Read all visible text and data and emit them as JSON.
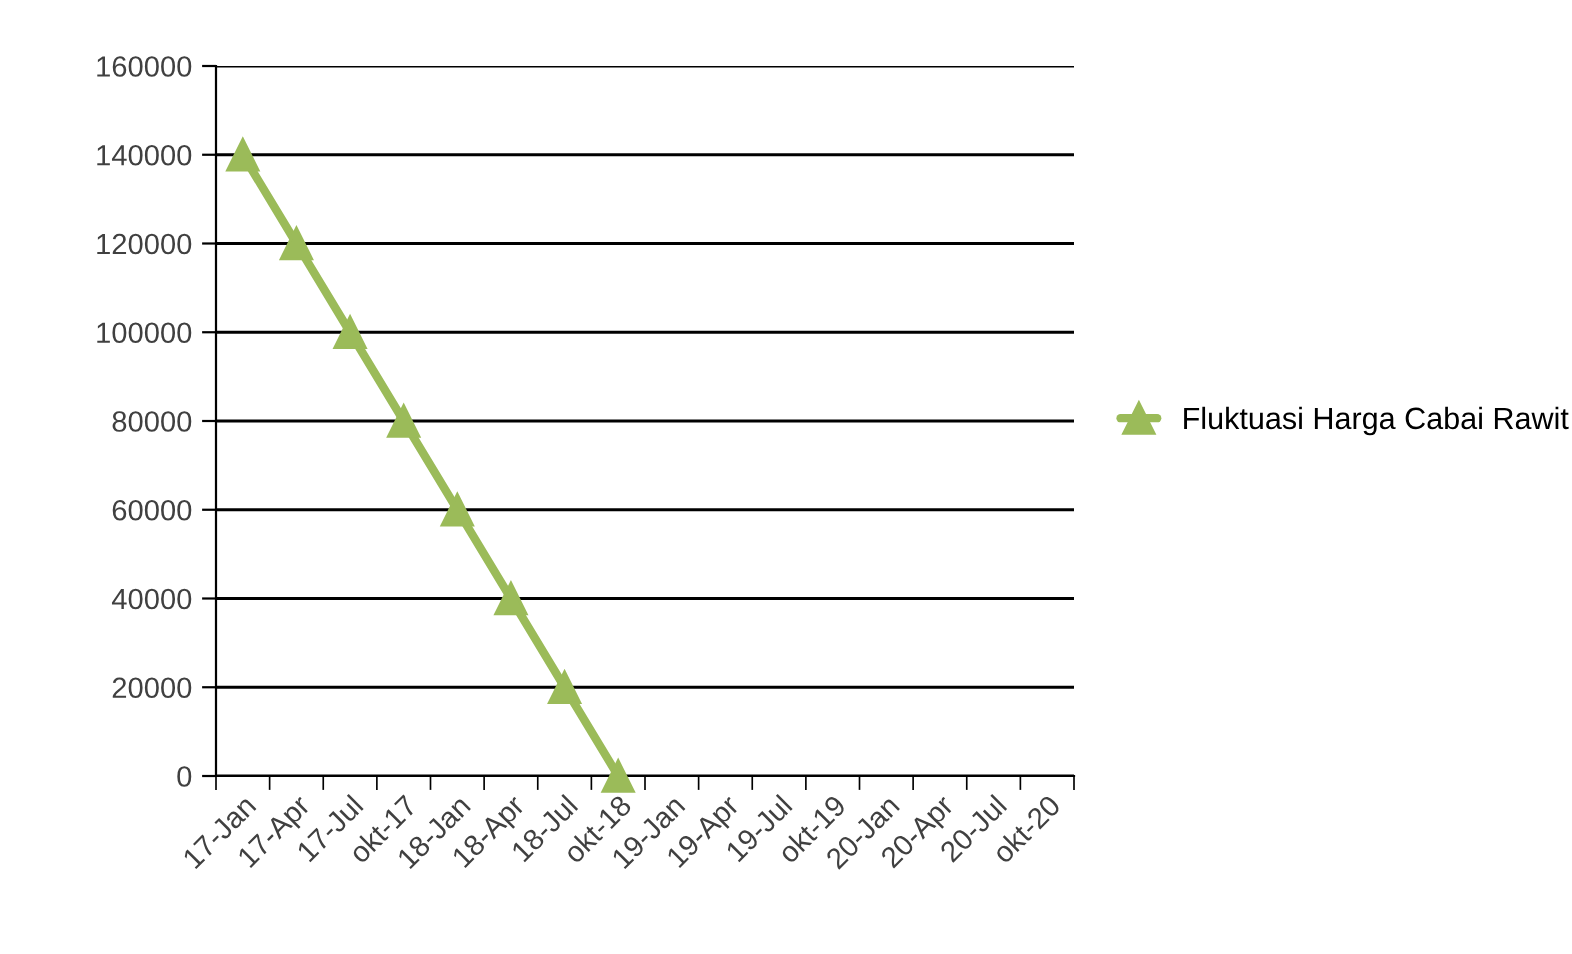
{
  "chart_data": {
    "type": "line",
    "categories": [
      "17-Jan",
      "17-Apr",
      "17-Jul",
      "okt-17",
      "18-Jan",
      "18-Apr",
      "18-Jul",
      "okt-18",
      "19-Jan",
      "19-Apr",
      "19-Jul",
      "okt-19",
      "20-Jan",
      "20-Apr",
      "20-Jul",
      "okt-20"
    ],
    "series": [
      {
        "name": "Fluktuasi Harga Cabai Rawit",
        "color": "#9bbb59",
        "values": [
          140000,
          120000,
          100000,
          80000,
          60000,
          40000,
          20000,
          0,
          null,
          null,
          null,
          null,
          null,
          null,
          null,
          null
        ]
      }
    ],
    "ylim": [
      0,
      160000
    ],
    "yticks": [
      0,
      20000,
      40000,
      60000,
      80000,
      100000,
      120000,
      140000,
      160000
    ],
    "grid": "y",
    "legend": "right",
    "marker": "triangle",
    "line_style": "solid"
  }
}
